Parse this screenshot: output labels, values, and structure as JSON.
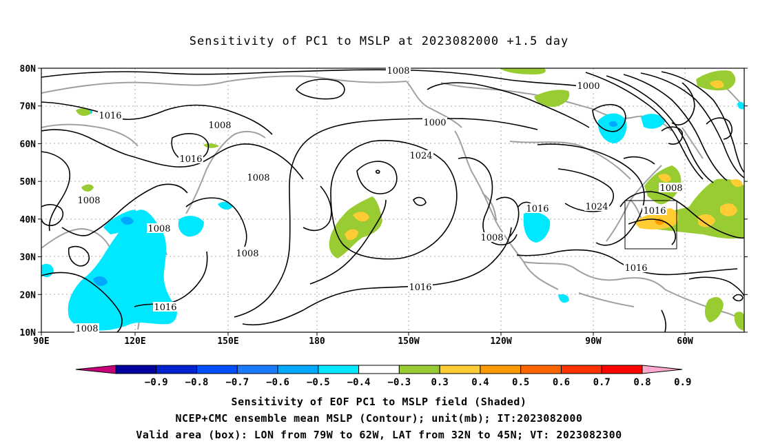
{
  "title": "Sensitivity of PC1 to MSLP at 2023082000 +1.5 day",
  "map": {
    "lat_ticks": [
      "80N",
      "70N",
      "60N",
      "50N",
      "40N",
      "30N",
      "20N",
      "10N"
    ],
    "lon_ticks": [
      "90E",
      "120E",
      "150E",
      "180",
      "150W",
      "120W",
      "90W",
      "60W"
    ],
    "contour_labels": [
      "1008",
      "1000",
      "1016",
      "1008",
      "1016",
      "1000",
      "1008",
      "1008",
      "1024",
      "1008",
      "1008",
      "1016",
      "1016",
      "1024",
      "1008",
      "1016",
      "1016",
      "1016",
      "1008",
      "1008"
    ]
  },
  "colorbar": {
    "tick_labels": [
      "-0.9",
      "-0.8",
      "-0.7",
      "-0.6",
      "-0.5",
      "-0.4",
      "-0.3",
      "0.3",
      "0.4",
      "0.5",
      "0.6",
      "0.7",
      "0.8",
      "0.9"
    ],
    "colors": [
      "#c8007a",
      "#0000a0",
      "#0022d0",
      "#0050ff",
      "#1a7bff",
      "#00a8ff",
      "#00e8ff",
      "#ffffff",
      "#99cc33",
      "#ffcc33",
      "#ff9900",
      "#ff6600",
      "#ff3300",
      "#ff0000",
      "#ffaacc"
    ]
  },
  "captions": [
    "Sensitivity of EOF PC1 to MSLP field (Shaded)",
    "NCEP+CMC ensemble mean MSLP (Contour); unit(mb); IT:2023082000",
    "Valid area (box): LON from 79W to 62W, LAT from 32N to 45N; VT: 2023082300"
  ],
  "valid_area": {
    "lon_from": "79W",
    "lon_to": "62W",
    "lat_from": "32N",
    "lat_to": "45N"
  }
}
